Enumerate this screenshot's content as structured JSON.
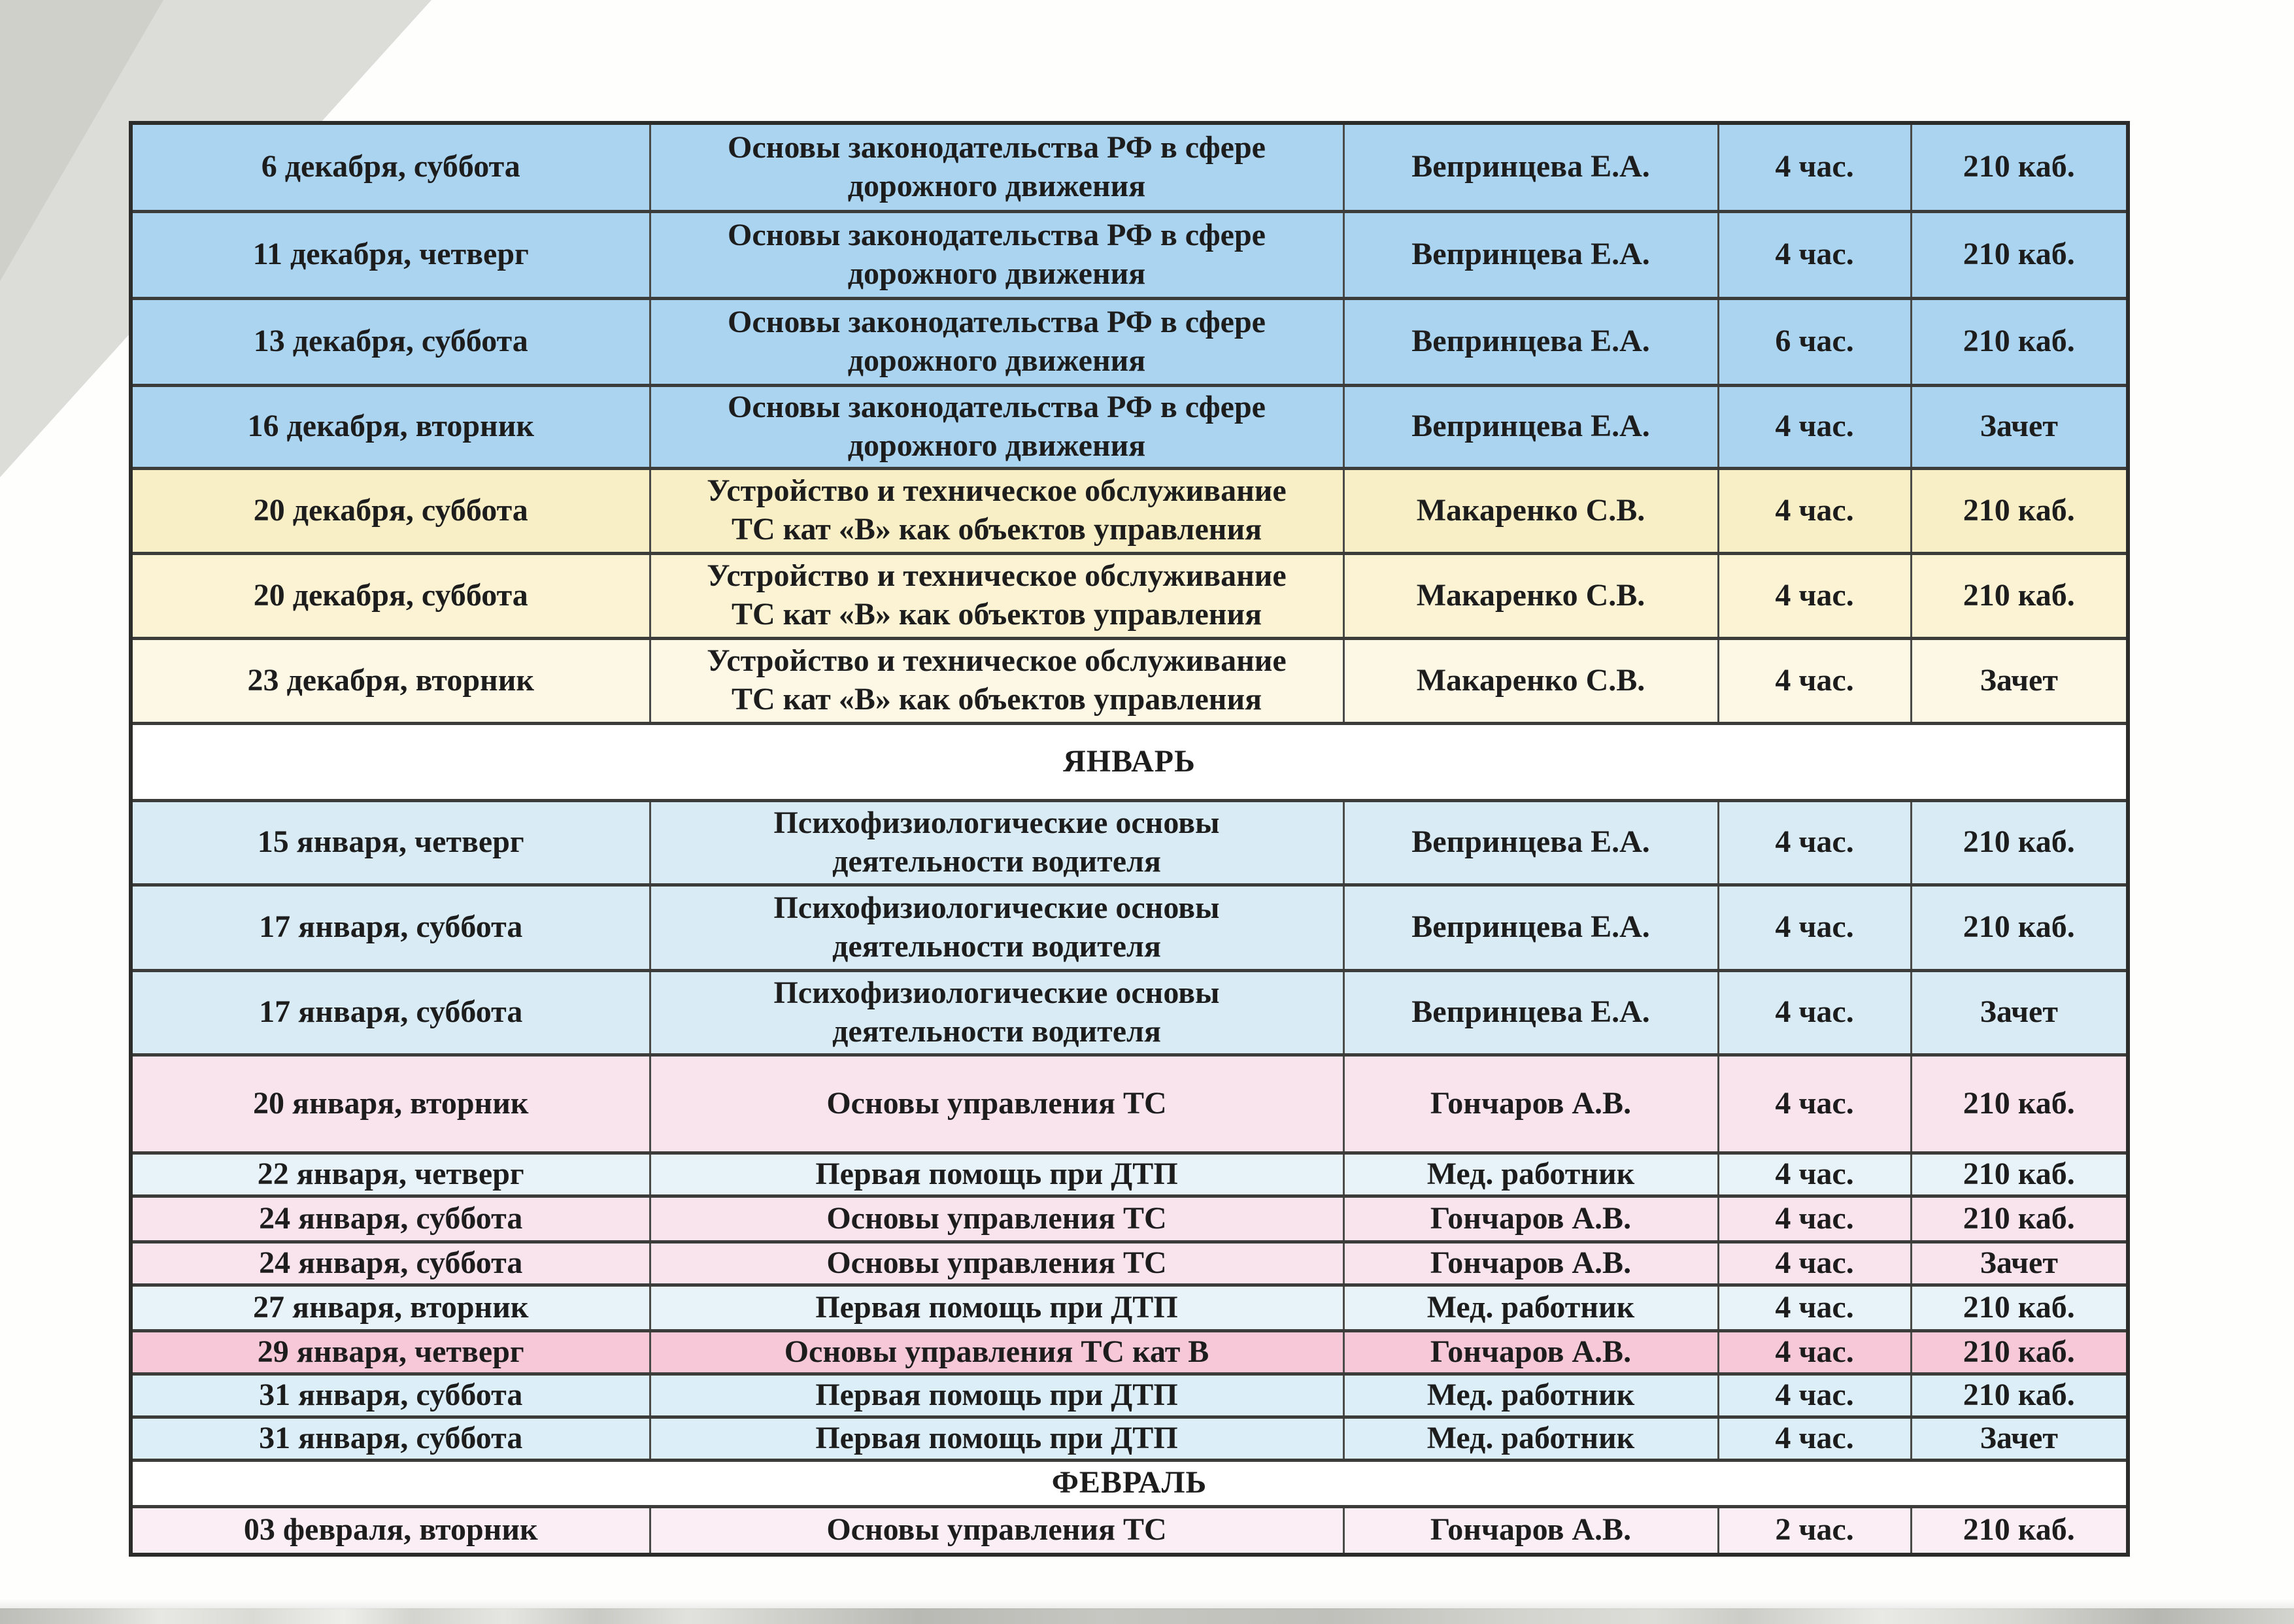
{
  "document": {
    "kind": "scanned schedule page",
    "months": [
      "ЯНВАРЬ",
      "ФЕВРАЛЬ"
    ]
  },
  "colors": {
    "dec_blue": "#abd4f0",
    "yellow": "#f9efc6",
    "yellow2": "#fbf3d4",
    "yellow_light": "#fdf8e6",
    "jan_cyan": "#d9ecf6",
    "pink": "#f9e4ed",
    "pale_blue": "#e8f3f9",
    "deep_pink": "#f6c8d8",
    "jan_blue2": "#dceef7",
    "feb_pink": "#fbeef4",
    "month_white": "#ffffff",
    "text": "#1d1d1d",
    "border": "#3c3c3a"
  },
  "table": {
    "rows": [
      {
        "kind": "lesson",
        "h": 135,
        "theme": "dec_blue",
        "date": "6 декабря, суббота",
        "subject": "Основы законодательства РФ в сфере\nдорожного движения",
        "teacher": "Вепринцева Е.А.",
        "hours": "4 час.",
        "room": "210 каб."
      },
      {
        "kind": "lesson",
        "h": 133,
        "theme": "dec_blue",
        "date": "11 декабря, четверг",
        "subject": "Основы законодательства РФ в сфере\nдорожного движения",
        "teacher": "Вепринцева Е.А.",
        "hours": "4 час.",
        "room": "210 каб."
      },
      {
        "kind": "lesson",
        "h": 133,
        "theme": "dec_blue",
        "date": "13 декабря, суббота",
        "subject": "Основы законодательства РФ в сфере\nдорожного движения",
        "teacher": "Вепринцева Е.А.",
        "hours": "6 час.",
        "room": "210 каб."
      },
      {
        "kind": "lesson",
        "h": 127,
        "theme": "dec_blue",
        "date": "16 декабря, вторник",
        "subject": "Основы законодательства РФ в сфере\nдорожного движения",
        "teacher": "Вепринцева Е.А.",
        "hours": "4 час.",
        "room": "Зачет"
      },
      {
        "kind": "lesson",
        "h": 130,
        "theme": "yellow",
        "date": "20 декабря, суббота",
        "subject": "Устройство и техническое обслуживание\nТС кат «В» как объектов управления",
        "teacher": "Макаренко С.В.",
        "hours": "4 час.",
        "room": "210 каб."
      },
      {
        "kind": "lesson",
        "h": 130,
        "theme": "yellow2",
        "date": "20 декабря, суббота",
        "subject": "Устройство и техническое обслуживание\nТС кат «В» как объектов управления",
        "teacher": "Макаренко С.В.",
        "hours": "4 час.",
        "room": "210 каб."
      },
      {
        "kind": "lesson",
        "h": 130,
        "theme": "yellow_light",
        "date": "23 декабря, вторник",
        "subject": "Устройство и техническое обслуживание\nТС кат «В» как объектов управления",
        "teacher": "Макаренко С.В.",
        "hours": "4 час.",
        "room": "Зачет"
      },
      {
        "kind": "month",
        "h": 118,
        "label": "ЯНВАРЬ"
      },
      {
        "kind": "lesson",
        "h": 129,
        "theme": "jan_cyan",
        "date": "15 января, четверг",
        "subject": "Психофизиологические основы\nдеятельности водителя",
        "teacher": "Вепринцева Е.А.",
        "hours": "4 час.",
        "room": "210 каб."
      },
      {
        "kind": "lesson",
        "h": 131,
        "theme": "jan_cyan",
        "date": "17 января, суббота",
        "subject": "Психофизиологические основы\nдеятельности водителя",
        "teacher": "Вепринцева Е.А.",
        "hours": "4 час.",
        "room": "210 каб."
      },
      {
        "kind": "lesson",
        "h": 129,
        "theme": "jan_cyan",
        "date": "17 января, суббота",
        "subject": "Психофизиологические основы\nдеятельности водителя",
        "teacher": "Вепринцева Е.А.",
        "hours": "4 час.",
        "room": "Зачет"
      },
      {
        "kind": "lesson",
        "h": 150,
        "theme": "pink",
        "date": "20 января, вторник",
        "subject": "Основы управления ТС",
        "teacher": "Гончаров А.В.",
        "hours": "4 час.",
        "room": "210 каб."
      },
      {
        "kind": "lesson",
        "h": 66,
        "theme": "pale_blue",
        "date": "22 января, четверг",
        "subject": "Первая помощь при ДТП",
        "teacher": "Мед. работник",
        "hours": "4 час.",
        "room": "210 каб."
      },
      {
        "kind": "lesson",
        "h": 70,
        "theme": "pink",
        "date": "24 января, суббота",
        "subject": "Основы управления ТС",
        "teacher": "Гончаров А.В.",
        "hours": "4 час.",
        "room": "210 каб."
      },
      {
        "kind": "lesson",
        "h": 66,
        "theme": "pink",
        "date": "24 января, суббота",
        "subject": "Основы управления ТС",
        "teacher": "Гончаров А.В.",
        "hours": "4 час.",
        "room": "Зачет"
      },
      {
        "kind": "lesson",
        "h": 70,
        "theme": "pale_blue",
        "date": "27 января, вторник",
        "subject": "Первая помощь при ДТП",
        "teacher": "Мед. работник",
        "hours": "4 час.",
        "room": "210 каб."
      },
      {
        "kind": "lesson",
        "h": 66,
        "theme": "deep_pink",
        "date": "29 января, четверг",
        "subject": "Основы управления ТС кат В",
        "teacher": "Гончаров А.В.",
        "hours": "4 час.",
        "room": "210 каб."
      },
      {
        "kind": "lesson",
        "h": 66,
        "theme": "jan_blue2",
        "date": "31 января, суббота",
        "subject": "Первая помощь при ДТП",
        "teacher": "Мед. работник",
        "hours": "4 час.",
        "room": "210 каб."
      },
      {
        "kind": "lesson",
        "h": 66,
        "theme": "jan_blue2",
        "date": "31 января, суббота",
        "subject": "Первая помощь при ДТП",
        "teacher": "Мед. работник",
        "hours": "4 час.",
        "room": "Зачет"
      },
      {
        "kind": "month",
        "h": 71,
        "label": "ФЕВРАЛЬ"
      },
      {
        "kind": "lesson",
        "h": 74,
        "theme": "feb_pink",
        "date": "03 февраля, вторник",
        "subject": "Основы управления ТС",
        "teacher": "Гончаров А.В.",
        "hours": "2 час.",
        "room": "210 каб."
      }
    ]
  }
}
